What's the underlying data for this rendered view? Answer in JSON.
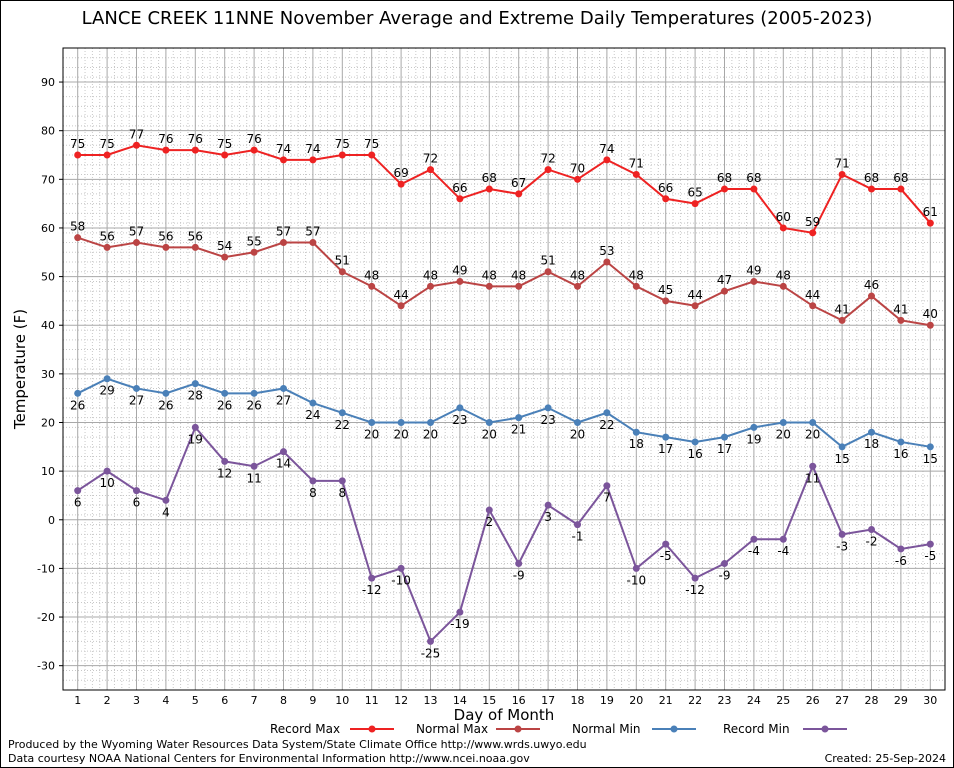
{
  "chart_data": {
    "type": "line",
    "title": "LANCE CREEK 11NNE November Average and Extreme Daily Temperatures (2005-2023)",
    "xlabel": "Day of Month",
    "ylabel": "Temperature (F)",
    "xlim": [
      0.5,
      30.5
    ],
    "ylim": [
      -35,
      97
    ],
    "y_ticks": [
      -30,
      -20,
      -10,
      0,
      10,
      20,
      30,
      40,
      50,
      60,
      70,
      80,
      90
    ],
    "x": [
      1,
      2,
      3,
      4,
      5,
      6,
      7,
      8,
      9,
      10,
      11,
      12,
      13,
      14,
      15,
      16,
      17,
      18,
      19,
      20,
      21,
      22,
      23,
      24,
      25,
      26,
      27,
      28,
      29,
      30
    ],
    "grid": true,
    "legend_position": "bottom",
    "series": [
      {
        "name": "Record Max",
        "color": "#ee2222",
        "label_side": "above",
        "values": [
          75,
          75,
          77,
          76,
          76,
          75,
          76,
          74,
          74,
          75,
          75,
          69,
          72,
          66,
          68,
          67,
          72,
          70,
          74,
          71,
          66,
          65,
          68,
          68,
          60,
          59,
          71,
          68,
          68,
          61
        ]
      },
      {
        "name": "Normal Max",
        "color": "#bb4444",
        "label_side": "above",
        "values": [
          58,
          56,
          57,
          56,
          56,
          54,
          55,
          57,
          57,
          51,
          48,
          44,
          48,
          49,
          48,
          48,
          51,
          48,
          53,
          48,
          45,
          44,
          47,
          49,
          48,
          44,
          41,
          46,
          41,
          40
        ]
      },
      {
        "name": "Normal Min",
        "color": "#4a80b8",
        "label_side": "below",
        "values": [
          26,
          29,
          27,
          26,
          28,
          26,
          26,
          27,
          24,
          22,
          20,
          20,
          20,
          23,
          20,
          21,
          23,
          20,
          22,
          18,
          17,
          16,
          17,
          19,
          20,
          20,
          15,
          18,
          16,
          15
        ]
      },
      {
        "name": "Record Min",
        "color": "#7b559b",
        "label_side": "below",
        "values": [
          6,
          10,
          6,
          4,
          19,
          12,
          11,
          14,
          8,
          8,
          -12,
          -10,
          -25,
          -19,
          2,
          -9,
          3,
          -1,
          7,
          -10,
          -5,
          -12,
          -9,
          -4,
          -4,
          11,
          -3,
          -2,
          -6,
          -5
        ]
      }
    ]
  },
  "footer": {
    "produced_by": "Produced by the Wyoming Water Resources Data System/State Climate Office http://www.wrds.uwyo.edu",
    "courtesy": "Data courtesy NOAA National Centers for Environmental Information http://www.ncei.noaa.gov",
    "created": "Created:  25-Sep-2024"
  }
}
